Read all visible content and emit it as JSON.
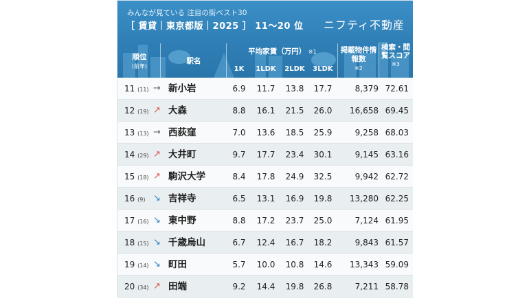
{
  "header": {
    "subtitle": "みんなが見ている 注目の街ベスト30",
    "title": "［ 賃貸｜東京都版｜2025 ］ 11〜20 位",
    "logo": "ニフティ不動産"
  },
  "columns": {
    "rank": "順位",
    "rank_prev": "(前年)",
    "station": "駅名",
    "rent": "平均家賃（万円）",
    "rent_note": "※1",
    "k1": "1K",
    "ldk1": "1LDK",
    "ldk2": "2LDK",
    "ldk3": "3LDK",
    "listings": "掲載物件情報数",
    "listings_note": "※2",
    "score": "検索・閲覧スコア",
    "score_note": "※3"
  },
  "rows": [
    {
      "rank": "11",
      "prev": "(11)",
      "trend": "→",
      "trend_type": "flat",
      "name": "新小岩",
      "k1": "6.9",
      "ldk1": "11.7",
      "ldk2": "13.8",
      "ldk3": "17.7",
      "count": "8,379",
      "score": "72.61"
    },
    {
      "rank": "12",
      "prev": "(19)",
      "trend": "↗",
      "trend_type": "up",
      "name": "大森",
      "k1": "8.8",
      "ldk1": "16.1",
      "ldk2": "21.5",
      "ldk3": "26.0",
      "count": "16,658",
      "score": "69.45"
    },
    {
      "rank": "13",
      "prev": "(13)",
      "trend": "→",
      "trend_type": "flat",
      "name": "西荻窪",
      "k1": "7.0",
      "ldk1": "13.6",
      "ldk2": "18.5",
      "ldk3": "25.9",
      "count": "9,258",
      "score": "68.03"
    },
    {
      "rank": "14",
      "prev": "(29)",
      "trend": "↗",
      "trend_type": "up",
      "name": "大井町",
      "k1": "9.7",
      "ldk1": "17.7",
      "ldk2": "23.4",
      "ldk3": "30.1",
      "count": "9,145",
      "score": "63.16"
    },
    {
      "rank": "15",
      "prev": "(18)",
      "trend": "↗",
      "trend_type": "up",
      "name": "駒沢大学",
      "k1": "8.4",
      "ldk1": "17.8",
      "ldk2": "24.9",
      "ldk3": "32.5",
      "count": "9,942",
      "score": "62.72"
    },
    {
      "rank": "16",
      "prev": "(9)",
      "trend": "↘",
      "trend_type": "down",
      "name": "吉祥寺",
      "k1": "6.5",
      "ldk1": "13.1",
      "ldk2": "16.9",
      "ldk3": "19.8",
      "count": "13,280",
      "score": "62.25"
    },
    {
      "rank": "17",
      "prev": "(16)",
      "trend": "↘",
      "trend_type": "down",
      "name": "東中野",
      "k1": "8.8",
      "ldk1": "17.2",
      "ldk2": "23.7",
      "ldk3": "25.0",
      "count": "7,124",
      "score": "61.95"
    },
    {
      "rank": "18",
      "prev": "(15)",
      "trend": "↘",
      "trend_type": "down",
      "name": "千歳烏山",
      "k1": "6.7",
      "ldk1": "12.4",
      "ldk2": "16.7",
      "ldk3": "18.2",
      "count": "9,843",
      "score": "61.57"
    },
    {
      "rank": "19",
      "prev": "(14)",
      "trend": "↘",
      "trend_type": "down",
      "name": "町田",
      "k1": "5.7",
      "ldk1": "10.0",
      "ldk2": "10.8",
      "ldk3": "14.6",
      "count": "13,343",
      "score": "59.09"
    },
    {
      "rank": "20",
      "prev": "(34)",
      "trend": "↗",
      "trend_type": "up",
      "name": "田端",
      "k1": "9.2",
      "ldk1": "14.4",
      "ldk2": "19.8",
      "ldk3": "26.8",
      "count": "7,211",
      "score": "58.78"
    }
  ],
  "colors": {
    "header_blue": "#2f7fb6",
    "up": "#d9534f",
    "down": "#2b7fc0",
    "flat": "#666666"
  }
}
